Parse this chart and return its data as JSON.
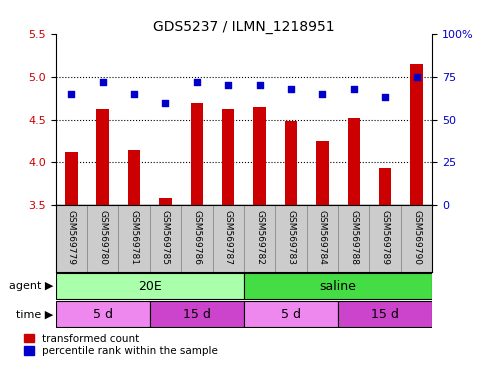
{
  "title": "GDS5237 / ILMN_1218951",
  "samples": [
    "GSM569779",
    "GSM569780",
    "GSM569781",
    "GSM569785",
    "GSM569786",
    "GSM569787",
    "GSM569782",
    "GSM569783",
    "GSM569784",
    "GSM569788",
    "GSM569789",
    "GSM569790"
  ],
  "transformed_count": [
    4.12,
    4.62,
    4.15,
    3.58,
    4.7,
    4.62,
    4.65,
    4.48,
    4.25,
    4.52,
    3.93,
    5.15
  ],
  "percentile_rank": [
    65,
    72,
    65,
    60,
    72,
    70,
    70,
    68,
    65,
    68,
    63,
    75
  ],
  "bar_bottom": 3.5,
  "ylim_left": [
    3.5,
    5.5
  ],
  "ylim_right": [
    0,
    100
  ],
  "yticks_left": [
    3.5,
    4.0,
    4.5,
    5.0,
    5.5
  ],
  "yticks_right": [
    0,
    25,
    50,
    75,
    100
  ],
  "ytick_labels_right": [
    "0",
    "25",
    "50",
    "75",
    "100%"
  ],
  "bar_color": "#cc0000",
  "dot_color": "#0000cc",
  "agent_groups": [
    {
      "label": "20E",
      "start": 0,
      "end": 6,
      "color": "#aaffaa"
    },
    {
      "label": "saline",
      "start": 6,
      "end": 12,
      "color": "#44dd44"
    }
  ],
  "time_groups": [
    {
      "label": "5 d",
      "start": 0,
      "end": 3,
      "color": "#ee88ee"
    },
    {
      "label": "15 d",
      "start": 3,
      "end": 6,
      "color": "#cc44cc"
    },
    {
      "label": "5 d",
      "start": 6,
      "end": 9,
      "color": "#ee88ee"
    },
    {
      "label": "15 d",
      "start": 9,
      "end": 12,
      "color": "#cc44cc"
    }
  ],
  "legend_items": [
    {
      "label": "transformed count",
      "color": "#cc0000"
    },
    {
      "label": "percentile rank within the sample",
      "color": "#0000cc"
    }
  ],
  "xlabel_agent": "agent",
  "xlabel_time": "time",
  "tick_label_color_left": "#cc0000",
  "tick_label_color_right": "#0000cc",
  "background_color": "#ffffff",
  "label_row_bg": "#cccccc",
  "dotted_lines": [
    4.0,
    4.5,
    5.0
  ]
}
